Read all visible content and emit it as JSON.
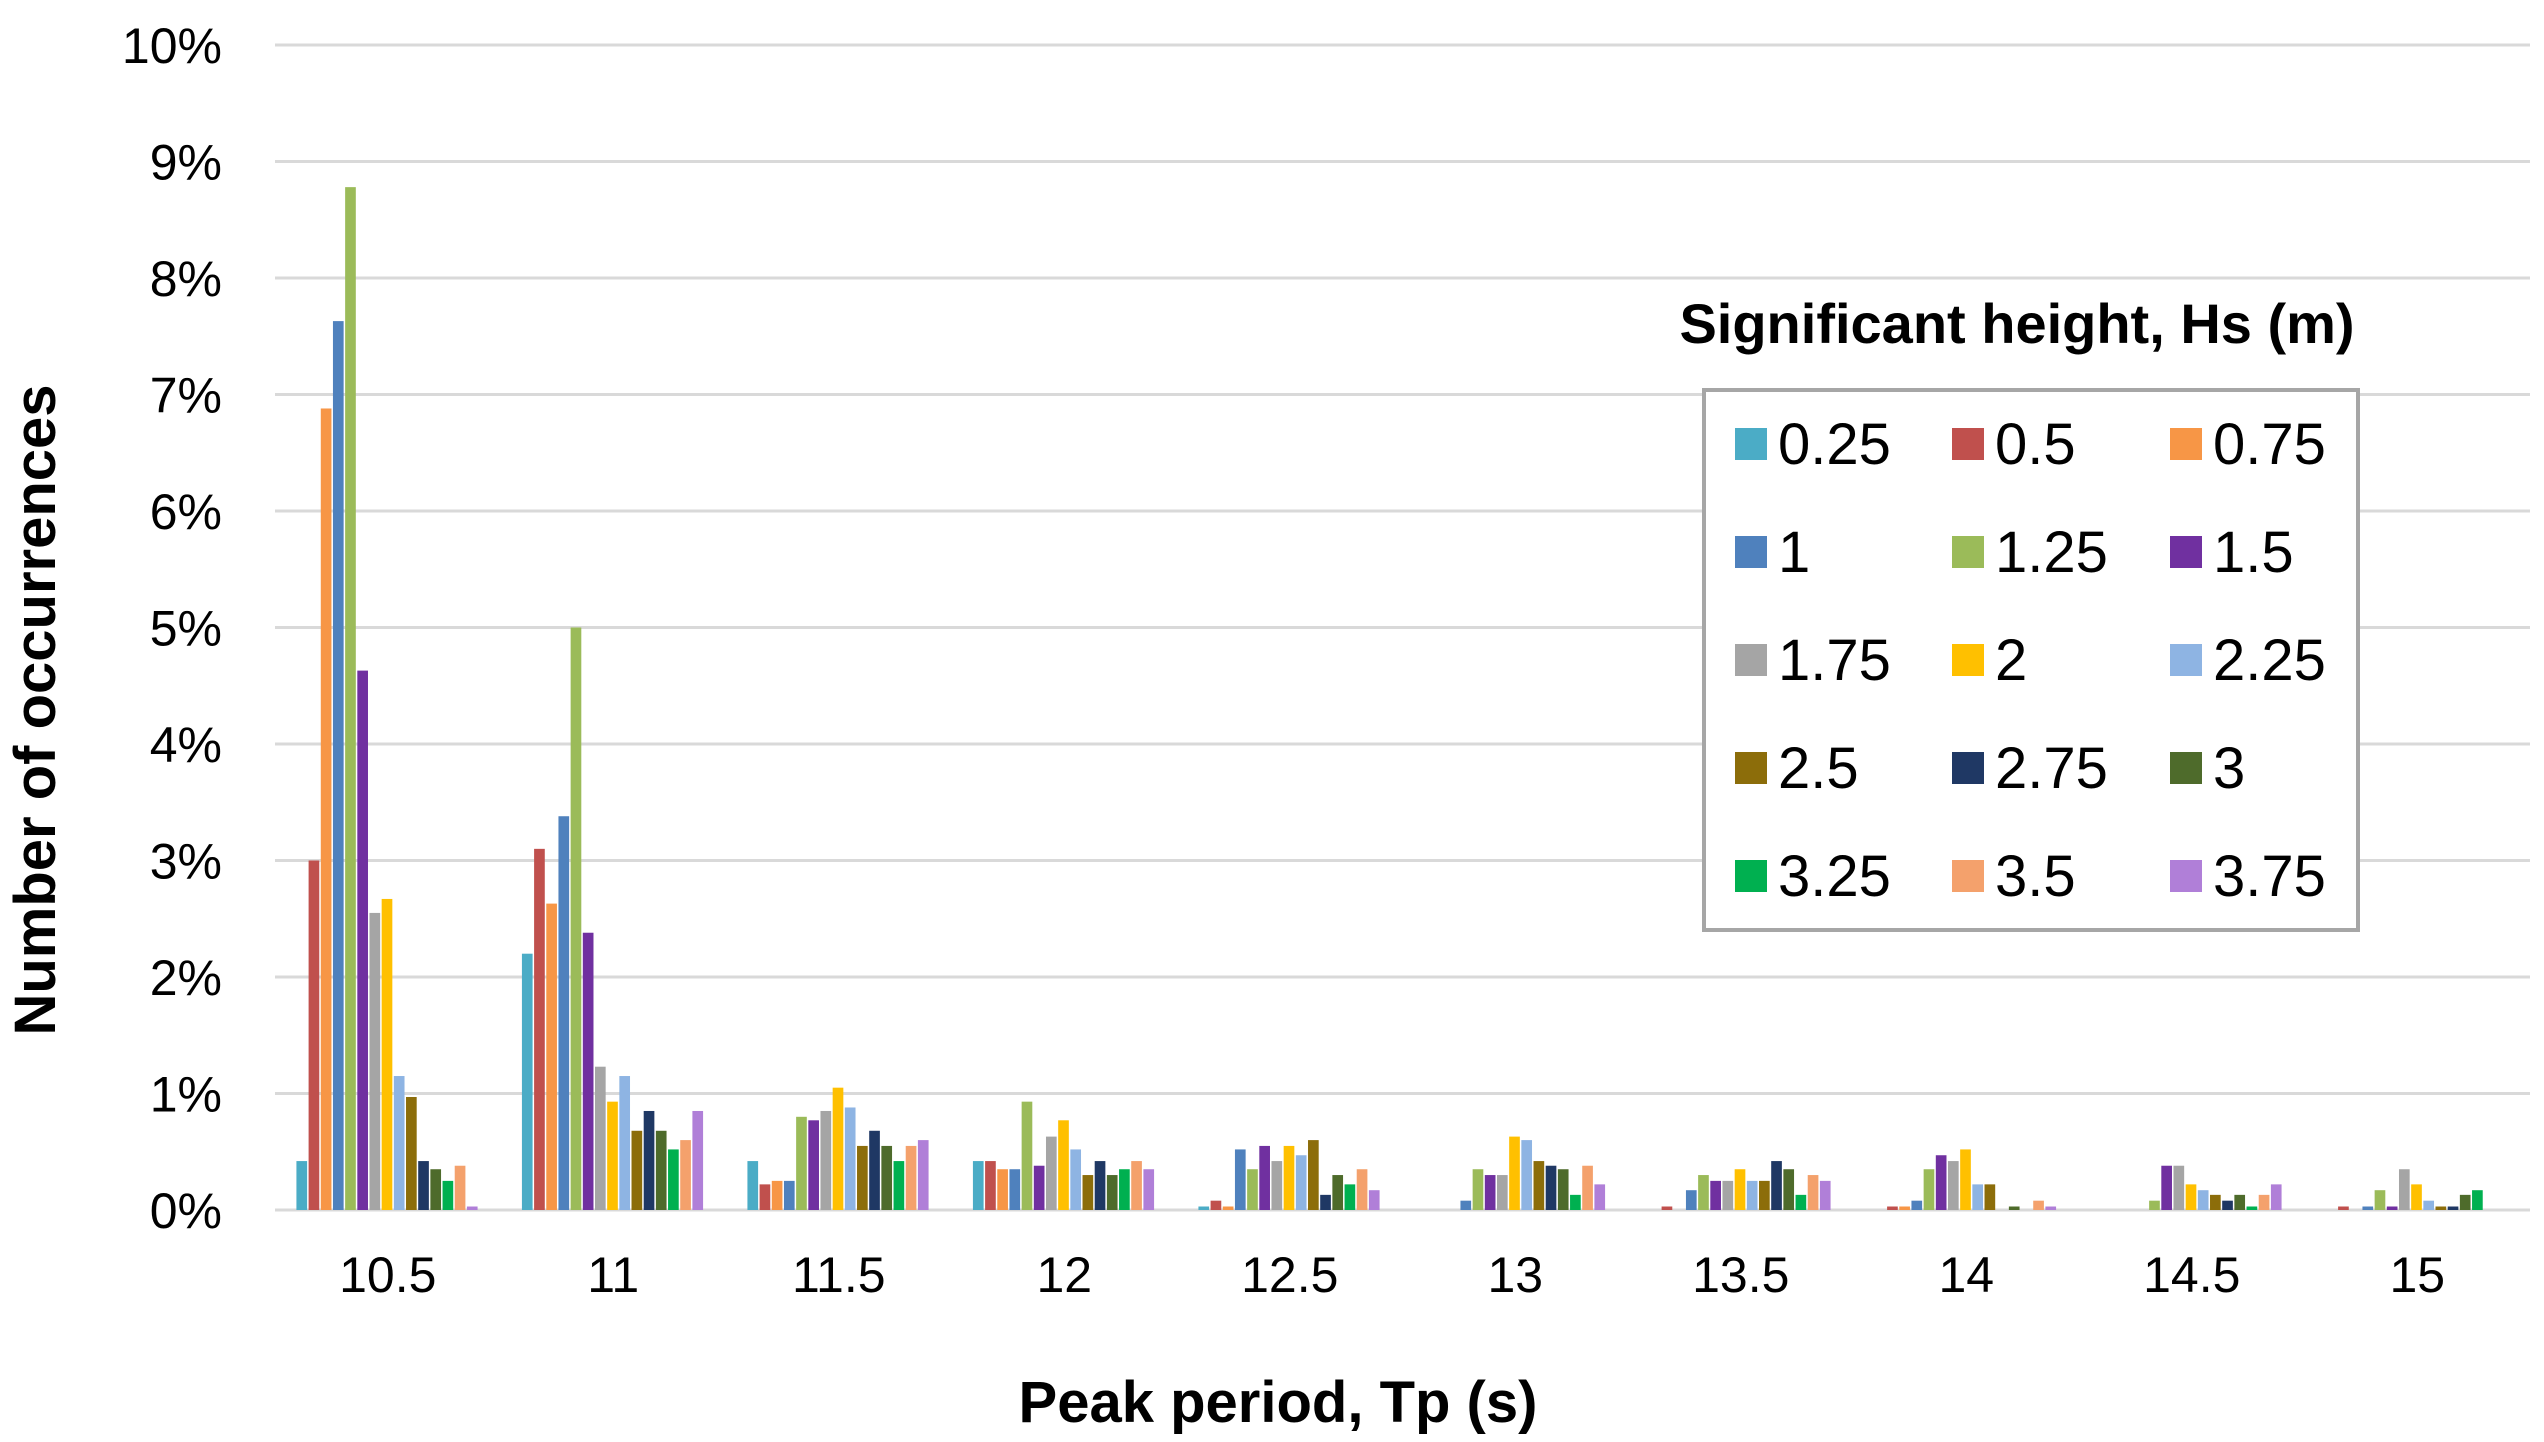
{
  "chart_data": {
    "type": "bar",
    "xlabel": "Peak period, Tp (s)",
    "ylabel": "Number of occurrences",
    "ylim": [
      0,
      10
    ],
    "yticks": [
      "0%",
      "1%",
      "2%",
      "3%",
      "4%",
      "5%",
      "6%",
      "7%",
      "8%",
      "9%",
      "10%"
    ],
    "grid": true,
    "legend_title": "Significant height, Hs (m)",
    "legend_position": "right",
    "categories": [
      "10.5",
      "11",
      "11.5",
      "12",
      "12.5",
      "13",
      "13.5",
      "14",
      "14.5",
      "15"
    ],
    "series": [
      {
        "name": "0.25",
        "color": "#4BACC6",
        "values": [
          0.42,
          2.2,
          0.42,
          0.42,
          0.03,
          0,
          0,
          0,
          0,
          0
        ]
      },
      {
        "name": "0.5",
        "color": "#C0504D",
        "values": [
          3.0,
          3.1,
          0.22,
          0.42,
          0.08,
          0,
          0.03,
          0.03,
          0,
          0.03
        ]
      },
      {
        "name": "0.75",
        "color": "#F79646",
        "values": [
          6.88,
          2.63,
          0.25,
          0.35,
          0.03,
          0,
          0,
          0.03,
          0,
          0
        ]
      },
      {
        "name": "1",
        "color": "#4F81BD",
        "values": [
          7.63,
          3.38,
          0.25,
          0.35,
          0.52,
          0.08,
          0.17,
          0.08,
          0,
          0.03
        ]
      },
      {
        "name": "1.25",
        "color": "#9BBB59",
        "values": [
          8.78,
          5.0,
          0.8,
          0.93,
          0.35,
          0.35,
          0.3,
          0.35,
          0.08,
          0.17
        ]
      },
      {
        "name": "1.5",
        "color": "#7030A0",
        "values": [
          4.63,
          2.38,
          0.77,
          0.38,
          0.55,
          0.3,
          0.25,
          0.47,
          0.38,
          0.03
        ]
      },
      {
        "name": "1.75",
        "color": "#A5A5A5",
        "values": [
          2.55,
          1.23,
          0.85,
          0.63,
          0.42,
          0.3,
          0.25,
          0.42,
          0.38,
          0.35
        ]
      },
      {
        "name": "2",
        "color": "#FFC000",
        "values": [
          2.67,
          0.93,
          1.05,
          0.77,
          0.55,
          0.63,
          0.35,
          0.52,
          0.22,
          0.22
        ]
      },
      {
        "name": "2.25",
        "color": "#8EB4E3",
        "values": [
          1.15,
          1.15,
          0.88,
          0.52,
          0.47,
          0.6,
          0.25,
          0.22,
          0.17,
          0.08
        ]
      },
      {
        "name": "2.5",
        "color": "#8C6D0A",
        "values": [
          0.97,
          0.68,
          0.55,
          0.3,
          0.6,
          0.42,
          0.25,
          0.22,
          0.13,
          0.03
        ]
      },
      {
        "name": "2.75",
        "color": "#1F3864",
        "values": [
          0.42,
          0.85,
          0.68,
          0.42,
          0.13,
          0.38,
          0.42,
          0,
          0.08,
          0.03
        ]
      },
      {
        "name": "3",
        "color": "#4E6B2B",
        "values": [
          0.35,
          0.68,
          0.55,
          0.3,
          0.3,
          0.35,
          0.35,
          0.03,
          0.13,
          0.13
        ]
      },
      {
        "name": "3.25",
        "color": "#00B050",
        "values": [
          0.25,
          0.52,
          0.42,
          0.35,
          0.22,
          0.13,
          0.13,
          0,
          0.03,
          0.17
        ]
      },
      {
        "name": "3.5",
        "color": "#F4A16C",
        "values": [
          0.38,
          0.6,
          0.55,
          0.42,
          0.35,
          0.38,
          0.3,
          0.08,
          0.13,
          0
        ]
      },
      {
        "name": "3.75",
        "color": "#B07FD8",
        "values": [
          0.03,
          0.85,
          0.6,
          0.35,
          0.17,
          0.22,
          0.25,
          0.03,
          0.22,
          0
        ]
      }
    ]
  }
}
